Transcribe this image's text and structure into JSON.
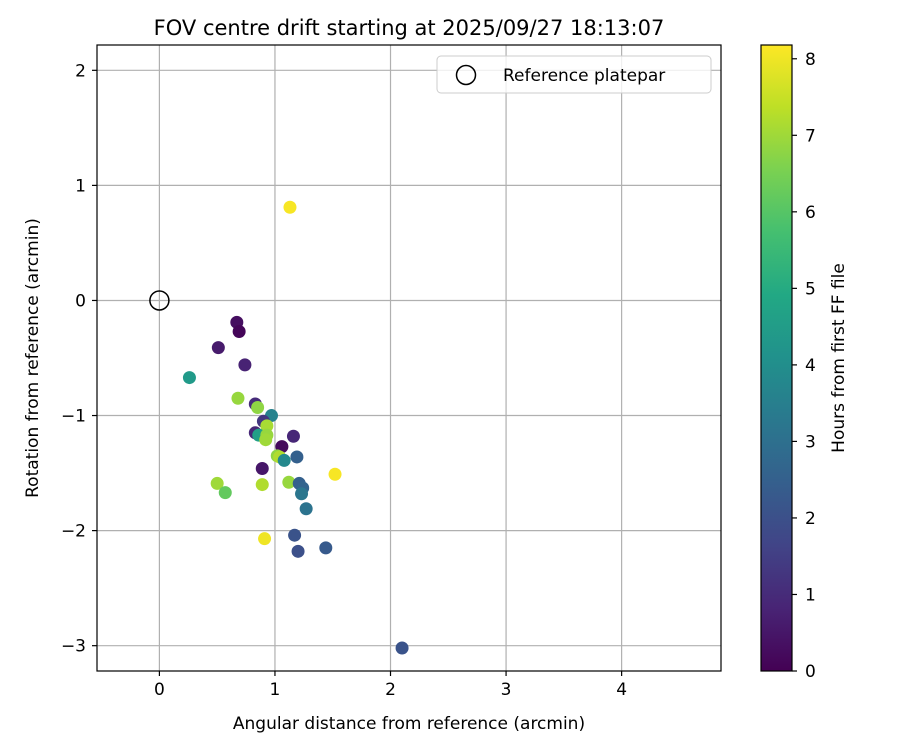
{
  "chart_data": {
    "type": "scatter",
    "title": "FOV centre drift starting at 2025/09/27 18:13:07",
    "xlabel": "Angular distance from reference (arcmin)",
    "ylabel": "Rotation from reference (arcmin)",
    "xlim": [
      -0.54,
      4.86
    ],
    "ylim": [
      -3.22,
      2.22
    ],
    "xticks": [
      0,
      1,
      2,
      3,
      4
    ],
    "yticks": [
      -3,
      -2,
      -1,
      0,
      1,
      2
    ],
    "grid": true,
    "legend": {
      "placement": "top-right",
      "entries": [
        {
          "label": "Reference platepar",
          "marker": "open-circle"
        }
      ]
    },
    "reference_point": {
      "x": 0,
      "y": 0
    },
    "colorbar": {
      "label": "Hours from first FF file",
      "range": [
        0,
        8.18
      ],
      "ticks": [
        0,
        1,
        2,
        3,
        4,
        5,
        6,
        7,
        8
      ],
      "colormap": "viridis"
    },
    "points": [
      {
        "x": 0.67,
        "y": -0.19,
        "hours": 0.3
      },
      {
        "x": 0.69,
        "y": -0.27,
        "hours": 0.1
      },
      {
        "x": 0.51,
        "y": -0.41,
        "hours": 0.6
      },
      {
        "x": 0.74,
        "y": -0.56,
        "hours": 0.8
      },
      {
        "x": 0.26,
        "y": -0.67,
        "hours": 4.4
      },
      {
        "x": 0.68,
        "y": -0.85,
        "hours": 6.9
      },
      {
        "x": 0.83,
        "y": -0.9,
        "hours": 1.0
      },
      {
        "x": 0.85,
        "y": -0.93,
        "hours": 6.8
      },
      {
        "x": 0.97,
        "y": -1.0,
        "hours": 3.6
      },
      {
        "x": 0.9,
        "y": -1.05,
        "hours": 1.3
      },
      {
        "x": 0.93,
        "y": -1.09,
        "hours": 7.1
      },
      {
        "x": 0.83,
        "y": -1.15,
        "hours": 0.9
      },
      {
        "x": 0.86,
        "y": -1.17,
        "hours": 4.6
      },
      {
        "x": 0.93,
        "y": -1.17,
        "hours": 6.9
      },
      {
        "x": 0.92,
        "y": -1.21,
        "hours": 7.0
      },
      {
        "x": 1.16,
        "y": -1.18,
        "hours": 0.9
      },
      {
        "x": 1.06,
        "y": -1.27,
        "hours": 0.2
      },
      {
        "x": 1.02,
        "y": -1.35,
        "hours": 6.8
      },
      {
        "x": 1.04,
        "y": -1.36,
        "hours": 7.2
      },
      {
        "x": 1.08,
        "y": -1.39,
        "hours": 3.8
      },
      {
        "x": 1.19,
        "y": -1.36,
        "hours": 2.5
      },
      {
        "x": 0.89,
        "y": -1.46,
        "hours": 0.5
      },
      {
        "x": 1.52,
        "y": -1.51,
        "hours": 8.1
      },
      {
        "x": 0.5,
        "y": -1.59,
        "hours": 7.0
      },
      {
        "x": 0.89,
        "y": -1.6,
        "hours": 7.2
      },
      {
        "x": 1.12,
        "y": -1.58,
        "hours": 6.9
      },
      {
        "x": 1.21,
        "y": -1.59,
        "hours": 2.5
      },
      {
        "x": 1.24,
        "y": -1.63,
        "hours": 2.6
      },
      {
        "x": 1.23,
        "y": -1.68,
        "hours": 3.2
      },
      {
        "x": 0.57,
        "y": -1.67,
        "hours": 6.2
      },
      {
        "x": 1.27,
        "y": -1.81,
        "hours": 3.1
      },
      {
        "x": 1.17,
        "y": -2.04,
        "hours": 2.1
      },
      {
        "x": 0.91,
        "y": -2.07,
        "hours": 8.0
      },
      {
        "x": 1.2,
        "y": -2.18,
        "hours": 2.0
      },
      {
        "x": 1.44,
        "y": -2.15,
        "hours": 2.3
      },
      {
        "x": 1.13,
        "y": 0.81,
        "hours": 8.1
      },
      {
        "x": 2.1,
        "y": -3.02,
        "hours": 2.1
      }
    ]
  }
}
